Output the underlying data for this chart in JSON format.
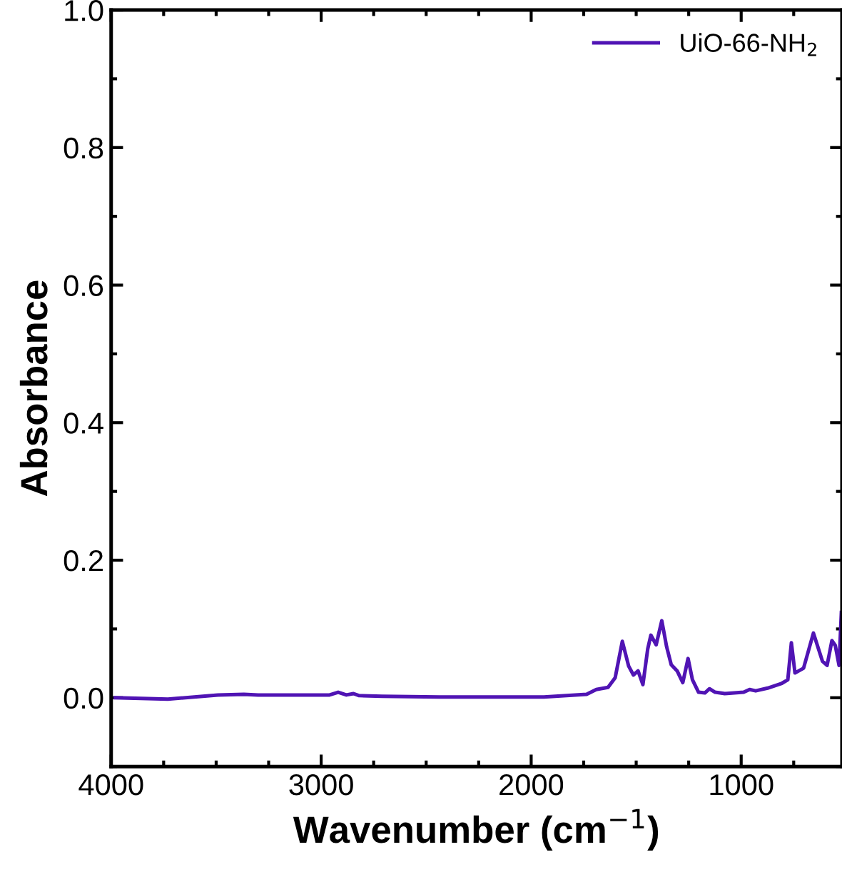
{
  "chart_data": {
    "type": "line",
    "xlabel": "Wavenumber (cm$^{−1}$)",
    "ylabel": "Absorbance",
    "xlim": [
      4000,
      520
    ],
    "ylim": [
      -0.1,
      1.0
    ],
    "xticks": [
      4000,
      3000,
      2000,
      1000
    ],
    "yticks": [
      {
        "value": 0,
        "label": "0.0"
      },
      {
        "value": 0.2,
        "label": "0.2"
      },
      {
        "value": 0.4,
        "label": "0.4"
      },
      {
        "value": 0.6,
        "label": "0.6"
      },
      {
        "value": 0.8,
        "label": "0.8"
      },
      {
        "value": 1.0,
        "label": "1.0"
      }
    ],
    "grid": false,
    "legend": "top right",
    "marker": "none",
    "line_style": "solid",
    "series": [
      {
        "name": "UiO-66-NH$_{2}$",
        "color": "#5014b4",
        "x": [
          3980,
          3730,
          3492,
          3368,
          3300,
          2960,
          2919,
          2880,
          2846,
          2819,
          2710,
          2438,
          1940,
          1736,
          1690,
          1634,
          1600,
          1566,
          1536,
          1513,
          1491,
          1468,
          1445,
          1430,
          1405,
          1378,
          1355,
          1333,
          1305,
          1278,
          1253,
          1232,
          1203,
          1173,
          1151,
          1124,
          1078,
          988,
          960,
          931,
          874,
          806,
          778,
          761,
          744,
          703,
          656,
          613,
          591,
          568,
          552,
          534,
          523
        ],
        "values": [
          0.0,
          -0.002,
          0.004,
          0.005,
          0.004,
          0.004,
          0.008,
          0.004,
          0.006,
          0.003,
          0.002,
          0.001,
          0.001,
          0.005,
          0.012,
          0.015,
          0.029,
          0.082,
          0.046,
          0.033,
          0.039,
          0.019,
          0.071,
          0.091,
          0.077,
          0.112,
          0.074,
          0.048,
          0.039,
          0.022,
          0.057,
          0.026,
          0.008,
          0.007,
          0.013,
          0.008,
          0.006,
          0.008,
          0.012,
          0.01,
          0.014,
          0.021,
          0.026,
          0.08,
          0.036,
          0.043,
          0.094,
          0.053,
          0.047,
          0.083,
          0.076,
          0.047,
          0.124
        ]
      }
    ]
  }
}
